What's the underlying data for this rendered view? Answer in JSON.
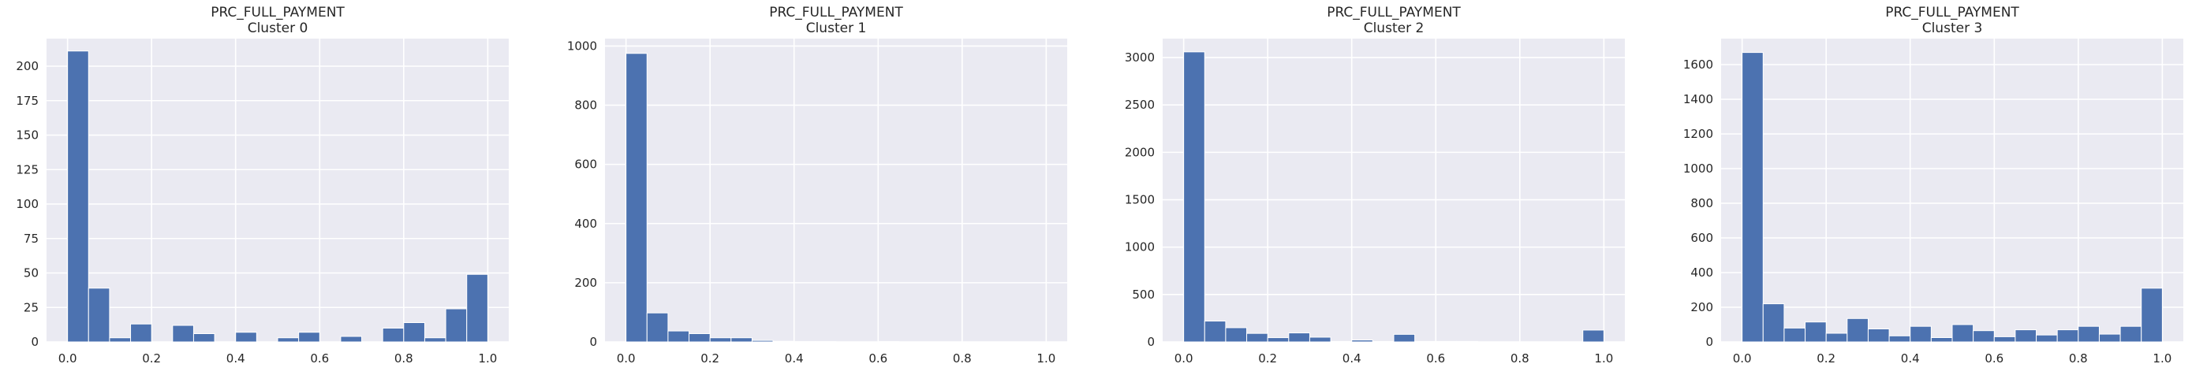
{
  "colors": {
    "axes_bg": "#EAEAF2",
    "grid": "#FFFFFF",
    "bar": "#4C72B0",
    "text": "#262626"
  },
  "chart_data": [
    {
      "type": "bar",
      "title": "PRC_FULL_PAYMENT",
      "subtitle": "Cluster 0",
      "xlim": [
        -0.05,
        1.05
      ],
      "ylim": [
        0,
        220
      ],
      "xticks": [
        0.0,
        0.2,
        0.4,
        0.6,
        0.8,
        1.0
      ],
      "xtick_labels": [
        "0.0",
        "0.2",
        "0.4",
        "0.6",
        "0.8",
        "1.0"
      ],
      "yticks": [
        0,
        25,
        50,
        75,
        100,
        125,
        150,
        175,
        200
      ],
      "ytick_labels": [
        "0",
        "25",
        "50",
        "75",
        "100",
        "125",
        "150",
        "175",
        "200"
      ],
      "bin_edges": [
        0,
        0.05,
        0.1,
        0.15,
        0.2,
        0.25,
        0.3,
        0.35,
        0.4,
        0.45,
        0.5,
        0.55,
        0.6,
        0.65,
        0.7,
        0.75,
        0.8,
        0.85,
        0.9,
        0.95,
        1.0
      ],
      "values": [
        211,
        39,
        3,
        13,
        0,
        12,
        6,
        0,
        7,
        0,
        3,
        7,
        0,
        4,
        0,
        10,
        14,
        3,
        24,
        49
      ],
      "grid": true
    },
    {
      "type": "bar",
      "title": "PRC_FULL_PAYMENT",
      "subtitle": "Cluster 1",
      "xlim": [
        -0.05,
        1.05
      ],
      "ylim": [
        0,
        1025
      ],
      "xticks": [
        0.0,
        0.2,
        0.4,
        0.6,
        0.8,
        1.0
      ],
      "xtick_labels": [
        "0.0",
        "0.2",
        "0.4",
        "0.6",
        "0.8",
        "1.0"
      ],
      "yticks": [
        0,
        200,
        400,
        600,
        800,
        1000
      ],
      "ytick_labels": [
        "0",
        "200",
        "400",
        "600",
        "800",
        "1000"
      ],
      "bin_edges": [
        0,
        0.05,
        0.1,
        0.15,
        0.2,
        0.25,
        0.3,
        0.35,
        0.4,
        0.45,
        0.5,
        0.55,
        0.6,
        0.65,
        0.7,
        0.75,
        0.8,
        0.85,
        0.9,
        0.95,
        1.0
      ],
      "values": [
        975,
        98,
        37,
        28,
        14,
        14,
        5,
        2,
        1,
        1,
        0,
        0,
        1,
        0,
        0,
        0,
        0,
        0,
        0,
        0
      ],
      "grid": true
    },
    {
      "type": "bar",
      "title": "PRC_FULL_PAYMENT",
      "subtitle": "Cluster 2",
      "xlim": [
        -0.05,
        1.05
      ],
      "ylim": [
        0,
        3200
      ],
      "xticks": [
        0.0,
        0.2,
        0.4,
        0.6,
        0.8,
        1.0
      ],
      "xtick_labels": [
        "0.0",
        "0.2",
        "0.4",
        "0.6",
        "0.8",
        "1.0"
      ],
      "yticks": [
        0,
        500,
        1000,
        1500,
        2000,
        2500,
        3000
      ],
      "ytick_labels": [
        "0",
        "500",
        "1000",
        "1500",
        "2000",
        "2500",
        "3000"
      ],
      "bin_edges": [
        0,
        0.05,
        0.1,
        0.15,
        0.2,
        0.25,
        0.3,
        0.35,
        0.4,
        0.45,
        0.5,
        0.55,
        0.6,
        0.65,
        0.7,
        0.75,
        0.8,
        0.85,
        0.9,
        0.95,
        1.0
      ],
      "values": [
        3060,
        220,
        150,
        90,
        45,
        95,
        50,
        5,
        20,
        5,
        80,
        5,
        5,
        5,
        0,
        0,
        0,
        0,
        0,
        125
      ],
      "grid": true
    },
    {
      "type": "bar",
      "title": "PRC_FULL_PAYMENT",
      "subtitle": "Cluster 3",
      "xlim": [
        -0.05,
        1.05
      ],
      "ylim": [
        0,
        1750
      ],
      "xticks": [
        0.0,
        0.2,
        0.4,
        0.6,
        0.8,
        1.0
      ],
      "xtick_labels": [
        "0.0",
        "0.2",
        "0.4",
        "0.6",
        "0.8",
        "1.0"
      ],
      "yticks": [
        0,
        200,
        400,
        600,
        800,
        1000,
        1200,
        1400,
        1600
      ],
      "ytick_labels": [
        "0",
        "200",
        "400",
        "600",
        "800",
        "1000",
        "1200",
        "1400",
        "1600"
      ],
      "bin_edges": [
        0,
        0.05,
        0.1,
        0.15,
        0.2,
        0.25,
        0.3,
        0.35,
        0.4,
        0.45,
        0.5,
        0.55,
        0.6,
        0.65,
        0.7,
        0.75,
        0.8,
        0.85,
        0.9,
        0.95,
        1.0
      ],
      "values": [
        1670,
        220,
        80,
        115,
        50,
        135,
        75,
        35,
        90,
        25,
        100,
        65,
        30,
        70,
        40,
        70,
        90,
        45,
        90,
        310
      ],
      "grid": true
    }
  ]
}
